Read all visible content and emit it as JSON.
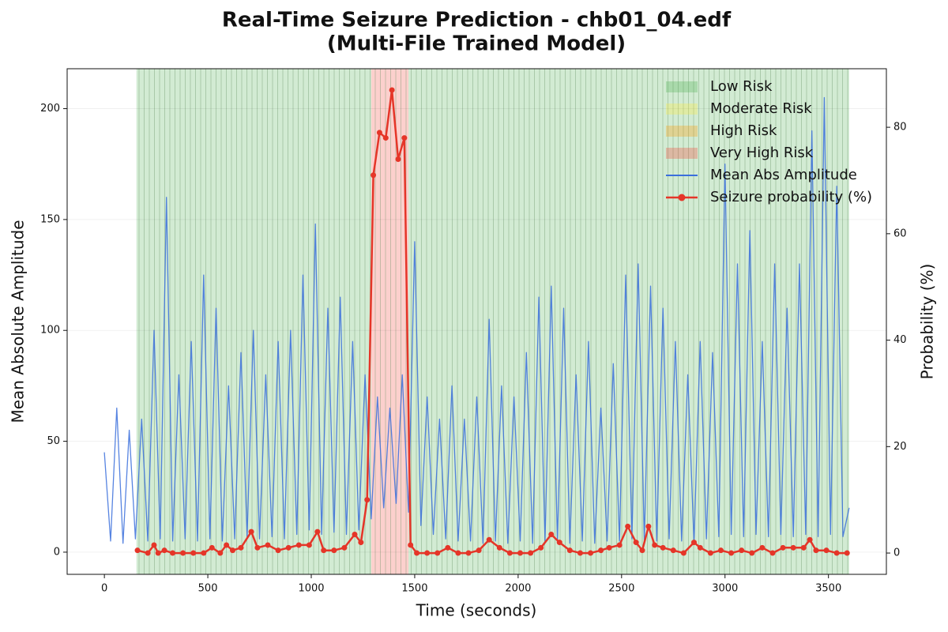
{
  "chart_data": {
    "type": "line",
    "title": [
      "Real-Time Seizure Prediction - chb01_04.edf",
      "(Multi-File Trained Model)"
    ],
    "xlabel": "Time (seconds)",
    "ylabel": "Mean Absolute Amplitude",
    "y2label": "Probability (%)",
    "xlim": [
      -180,
      3780
    ],
    "xticks": [
      0,
      500,
      1000,
      1500,
      2000,
      2500,
      3000,
      3500
    ],
    "ylim": [
      -10,
      218
    ],
    "yticks": [
      0,
      50,
      100,
      150,
      200
    ],
    "y2lim": [
      -4,
      91
    ],
    "y2ticks": [
      0,
      20,
      40,
      60,
      80
    ],
    "grid": true,
    "legend": "upper right",
    "regions": [
      {
        "start": 155,
        "end": 1290,
        "color": "#4caf50"
      },
      {
        "start": 1290,
        "end": 1470,
        "color": "#f44336"
      },
      {
        "start": 1470,
        "end": 3600,
        "color": "#4caf50"
      }
    ],
    "legend_patches": [
      {
        "name": "Low Risk",
        "color": "#4caf50"
      },
      {
        "name": "Moderate Risk",
        "color": "#ffeb3b"
      },
      {
        "name": "High Risk",
        "color": "#ff9800"
      },
      {
        "name": "Very High Risk",
        "color": "#f44336"
      }
    ],
    "series": [
      {
        "name": "Mean Abs Amplitude",
        "color": "#3a6fdc",
        "axis": "y",
        "x": [
          0,
          30,
          60,
          90,
          120,
          150,
          180,
          210,
          240,
          270,
          300,
          330,
          360,
          390,
          420,
          450,
          480,
          510,
          540,
          570,
          600,
          630,
          660,
          690,
          720,
          750,
          780,
          810,
          840,
          870,
          900,
          930,
          960,
          990,
          1020,
          1050,
          1080,
          1110,
          1140,
          1170,
          1200,
          1230,
          1260,
          1290,
          1320,
          1350,
          1380,
          1410,
          1440,
          1470,
          1500,
          1530,
          1560,
          1590,
          1620,
          1650,
          1680,
          1710,
          1740,
          1770,
          1800,
          1830,
          1860,
          1890,
          1920,
          1950,
          1980,
          2010,
          2040,
          2070,
          2100,
          2130,
          2160,
          2190,
          2220,
          2250,
          2280,
          2310,
          2340,
          2370,
          2400,
          2430,
          2460,
          2490,
          2520,
          2550,
          2580,
          2610,
          2640,
          2670,
          2700,
          2730,
          2760,
          2790,
          2820,
          2850,
          2880,
          2910,
          2940,
          2970,
          3000,
          3030,
          3060,
          3090,
          3120,
          3150,
          3180,
          3210,
          3240,
          3270,
          3300,
          3330,
          3360,
          3390,
          3420,
          3450,
          3480,
          3510,
          3540,
          3570,
          3600
        ],
        "values": [
          45,
          5,
          65,
          4,
          55,
          6,
          60,
          5,
          100,
          6,
          160,
          5,
          80,
          6,
          95,
          5,
          125,
          6,
          110,
          5,
          75,
          6,
          90,
          7,
          100,
          6,
          80,
          7,
          95,
          6,
          100,
          8,
          125,
          10,
          148,
          8,
          110,
          9,
          115,
          8,
          95,
          10,
          80,
          15,
          70,
          20,
          65,
          22,
          80,
          18,
          140,
          12,
          70,
          8,
          60,
          6,
          75,
          5,
          60,
          5,
          70,
          4,
          105,
          5,
          75,
          4,
          70,
          5,
          90,
          4,
          115,
          5,
          120,
          5,
          110,
          4,
          80,
          5,
          95,
          4,
          65,
          5,
          85,
          5,
          125,
          6,
          130,
          5,
          120,
          5,
          110,
          6,
          95,
          5,
          80,
          4,
          95,
          6,
          90,
          7,
          175,
          8,
          130,
          7,
          145,
          8,
          95,
          7,
          130,
          8,
          110,
          7,
          130,
          8,
          190,
          7,
          205,
          8,
          165,
          7,
          20
        ]
      },
      {
        "name": "Seizure probability (%)",
        "color": "#e53528",
        "axis": "y2",
        "marker": true,
        "x": [
          160,
          210,
          240,
          260,
          290,
          330,
          380,
          430,
          480,
          520,
          560,
          590,
          620,
          660,
          710,
          740,
          790,
          840,
          890,
          940,
          990,
          1030,
          1060,
          1110,
          1160,
          1210,
          1240,
          1270,
          1300,
          1330,
          1360,
          1390,
          1420,
          1450,
          1480,
          1510,
          1560,
          1610,
          1660,
          1710,
          1760,
          1810,
          1860,
          1910,
          1960,
          2010,
          2060,
          2110,
          2160,
          2200,
          2250,
          2300,
          2350,
          2400,
          2440,
          2490,
          2530,
          2570,
          2600,
          2630,
          2660,
          2700,
          2750,
          2800,
          2850,
          2880,
          2930,
          2980,
          3030,
          3080,
          3130,
          3180,
          3230,
          3280,
          3330,
          3380,
          3410,
          3440,
          3490,
          3540,
          3590
        ],
        "values": [
          0.5,
          0,
          1.5,
          0,
          0.5,
          0,
          0,
          0,
          0,
          1,
          0,
          1.5,
          0.5,
          1,
          4,
          1,
          1.5,
          0.5,
          1,
          1.5,
          1.5,
          4,
          0.5,
          0.5,
          1,
          3.5,
          2,
          10,
          71,
          79,
          78,
          87,
          74,
          78,
          1.5,
          0,
          0,
          0,
          1,
          0,
          0,
          0.5,
          2.5,
          1,
          0,
          0,
          0,
          1,
          3.5,
          2,
          0.5,
          0,
          0,
          0.5,
          1,
          1.5,
          5,
          2,
          0.5,
          5,
          1.5,
          1,
          0.5,
          0,
          2,
          1,
          0,
          0.5,
          0,
          0.5,
          0,
          1,
          0,
          1,
          1,
          1,
          2.5,
          0.5,
          0.5,
          0,
          0
        ]
      }
    ]
  }
}
